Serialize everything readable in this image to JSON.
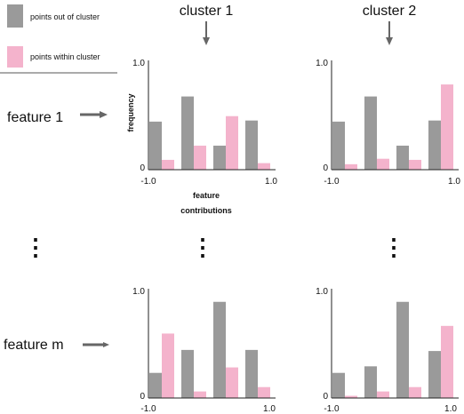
{
  "legend": {
    "items": [
      {
        "label": "points out of cluster",
        "color": "#9a9a9a"
      },
      {
        "label": "points within cluster",
        "color": "#f4b3cc"
      }
    ]
  },
  "columns": [
    {
      "title": "cluster 1"
    },
    {
      "title": "cluster 2"
    }
  ],
  "rows": [
    {
      "label": "feature 1"
    },
    {
      "label": "feature m"
    }
  ],
  "ellipsis": "⋮",
  "axis": {
    "ylabel": "frequency",
    "xlabel_line1": "feature",
    "xlabel_line2": "contributions",
    "ytick_top": "1.0",
    "ytick_bottom": "0",
    "xtick_left": "-1.0",
    "xtick_right": "1.0"
  },
  "colors": {
    "out": "#9a9a9a",
    "within": "#f4b3cc",
    "arrow": "#666666",
    "axis": "#222222"
  },
  "chart_data": [
    {
      "type": "bar",
      "row": "feature 1",
      "column": "cluster 1",
      "ylim": [
        0,
        1
      ],
      "series": [
        {
          "name": "points out of cluster",
          "values": [
            0.44,
            0.67,
            0.22,
            0.45
          ]
        },
        {
          "name": "points within cluster",
          "values": [
            0.09,
            0.22,
            0.49,
            0.06
          ]
        }
      ]
    },
    {
      "type": "bar",
      "row": "feature 1",
      "column": "cluster 2",
      "ylim": [
        0,
        1
      ],
      "series": [
        {
          "name": "points out of cluster",
          "values": [
            0.44,
            0.67,
            0.22,
            0.45
          ]
        },
        {
          "name": "points within cluster",
          "values": [
            0.05,
            0.1,
            0.09,
            0.78
          ]
        }
      ]
    },
    {
      "type": "bar",
      "row": "feature m",
      "column": "cluster 1",
      "ylim": [
        0,
        1
      ],
      "series": [
        {
          "name": "points out of cluster",
          "values": [
            0.23,
            0.44,
            0.88,
            0.44
          ]
        },
        {
          "name": "points within cluster",
          "values": [
            0.59,
            0.06,
            0.28,
            0.1
          ]
        }
      ]
    },
    {
      "type": "bar",
      "row": "feature m",
      "column": "cluster 2",
      "ylim": [
        0,
        1
      ],
      "series": [
        {
          "name": "points out of cluster",
          "values": [
            0.23,
            0.29,
            0.88,
            0.43
          ]
        },
        {
          "name": "points within cluster",
          "values": [
            0.02,
            0.06,
            0.1,
            0.66
          ]
        }
      ]
    }
  ]
}
